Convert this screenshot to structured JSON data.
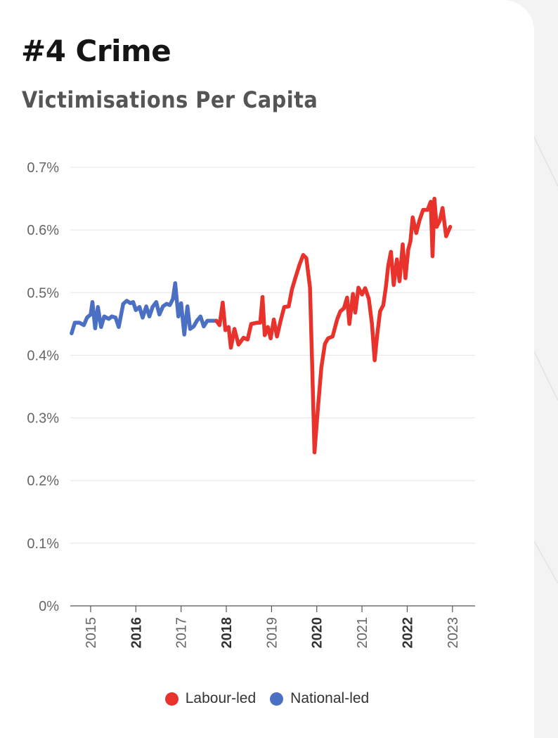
{
  "header": {
    "title": "#4 Crime",
    "subtitle": "Victimisations Per Capita"
  },
  "colors": {
    "labour": "#e8322b",
    "national": "#4a6fc3",
    "grid": "#e4e4ea",
    "axis_text": "#666666"
  },
  "legend": [
    {
      "label": "Labour-led",
      "color": "#e8322b"
    },
    {
      "label": "National-led",
      "color": "#4a6fc3"
    }
  ],
  "chart_data": {
    "type": "line",
    "title": "Victimisations Per Capita",
    "xlabel": "",
    "ylabel": "",
    "xlim": [
      2014.55,
      2023.5
    ],
    "ylim": [
      0,
      0.7
    ],
    "y_ticks": [
      0,
      0.1,
      0.2,
      0.3,
      0.4,
      0.5,
      0.6,
      0.7
    ],
    "y_tick_labels": [
      "0%",
      "0.1%",
      "0.2%",
      "0.3%",
      "0.4%",
      "0.5%",
      "0.6%",
      "0.7%"
    ],
    "x_ticks": [
      {
        "value": 2015,
        "label": "2015",
        "bold": false
      },
      {
        "value": 2016,
        "label": "2016",
        "bold": true
      },
      {
        "value": 2017,
        "label": "2017",
        "bold": false
      },
      {
        "value": 2018,
        "label": "2018",
        "bold": true
      },
      {
        "value": 2019,
        "label": "2019",
        "bold": false
      },
      {
        "value": 2020,
        "label": "2020",
        "bold": true
      },
      {
        "value": 2021,
        "label": "2021",
        "bold": false
      },
      {
        "value": 2022,
        "label": "2022",
        "bold": true
      },
      {
        "value": 2023,
        "label": "2023",
        "bold": false
      }
    ],
    "grid": true,
    "legend_position": "bottom",
    "series": [
      {
        "name": "National-led",
        "color": "#4a6fc3",
        "points": [
          [
            2014.58,
            0.435
          ],
          [
            2014.65,
            0.452
          ],
          [
            2014.75,
            0.452
          ],
          [
            2014.85,
            0.448
          ],
          [
            2014.92,
            0.46
          ],
          [
            2015.0,
            0.465
          ],
          [
            2015.04,
            0.485
          ],
          [
            2015.1,
            0.443
          ],
          [
            2015.16,
            0.477
          ],
          [
            2015.23,
            0.445
          ],
          [
            2015.3,
            0.462
          ],
          [
            2015.4,
            0.458
          ],
          [
            2015.47,
            0.462
          ],
          [
            2015.55,
            0.46
          ],
          [
            2015.62,
            0.445
          ],
          [
            2015.72,
            0.482
          ],
          [
            2015.8,
            0.487
          ],
          [
            2015.88,
            0.483
          ],
          [
            2015.94,
            0.485
          ],
          [
            2016.0,
            0.472
          ],
          [
            2016.08,
            0.477
          ],
          [
            2016.15,
            0.46
          ],
          [
            2016.23,
            0.478
          ],
          [
            2016.3,
            0.462
          ],
          [
            2016.37,
            0.477
          ],
          [
            2016.45,
            0.485
          ],
          [
            2016.52,
            0.465
          ],
          [
            2016.6,
            0.478
          ],
          [
            2016.68,
            0.482
          ],
          [
            2016.75,
            0.48
          ],
          [
            2016.82,
            0.49
          ],
          [
            2016.87,
            0.515
          ],
          [
            2016.94,
            0.462
          ],
          [
            2017.0,
            0.483
          ],
          [
            2017.07,
            0.433
          ],
          [
            2017.14,
            0.478
          ],
          [
            2017.2,
            0.442
          ],
          [
            2017.28,
            0.446
          ],
          [
            2017.35,
            0.455
          ],
          [
            2017.43,
            0.462
          ],
          [
            2017.5,
            0.446
          ],
          [
            2017.58,
            0.455
          ],
          [
            2017.68,
            0.455
          ],
          [
            2017.78,
            0.455
          ]
        ]
      },
      {
        "name": "Labour-led",
        "color": "#e8322b",
        "points": [
          [
            2017.78,
            0.455
          ],
          [
            2017.85,
            0.448
          ],
          [
            2017.92,
            0.484
          ],
          [
            2017.98,
            0.44
          ],
          [
            2018.05,
            0.445
          ],
          [
            2018.1,
            0.412
          ],
          [
            2018.18,
            0.442
          ],
          [
            2018.27,
            0.417
          ],
          [
            2018.38,
            0.428
          ],
          [
            2018.47,
            0.425
          ],
          [
            2018.55,
            0.45
          ],
          [
            2018.68,
            0.452
          ],
          [
            2018.75,
            0.452
          ],
          [
            2018.8,
            0.493
          ],
          [
            2018.85,
            0.432
          ],
          [
            2018.92,
            0.445
          ],
          [
            2018.98,
            0.427
          ],
          [
            2019.05,
            0.457
          ],
          [
            2019.12,
            0.43
          ],
          [
            2019.2,
            0.455
          ],
          [
            2019.28,
            0.477
          ],
          [
            2019.38,
            0.478
          ],
          [
            2019.45,
            0.505
          ],
          [
            2019.52,
            0.522
          ],
          [
            2019.62,
            0.545
          ],
          [
            2019.7,
            0.56
          ],
          [
            2019.77,
            0.555
          ],
          [
            2019.85,
            0.508
          ],
          [
            2019.9,
            0.38
          ],
          [
            2019.95,
            0.245
          ],
          [
            2020.02,
            0.31
          ],
          [
            2020.1,
            0.38
          ],
          [
            2020.18,
            0.418
          ],
          [
            2020.25,
            0.427
          ],
          [
            2020.35,
            0.43
          ],
          [
            2020.45,
            0.457
          ],
          [
            2020.52,
            0.47
          ],
          [
            2020.6,
            0.475
          ],
          [
            2020.67,
            0.492
          ],
          [
            2020.72,
            0.45
          ],
          [
            2020.8,
            0.498
          ],
          [
            2020.85,
            0.468
          ],
          [
            2020.92,
            0.508
          ],
          [
            2021.0,
            0.497
          ],
          [
            2021.07,
            0.507
          ],
          [
            2021.15,
            0.49
          ],
          [
            2021.22,
            0.45
          ],
          [
            2021.28,
            0.392
          ],
          [
            2021.33,
            0.428
          ],
          [
            2021.4,
            0.47
          ],
          [
            2021.47,
            0.48
          ],
          [
            2021.53,
            0.51
          ],
          [
            2021.58,
            0.543
          ],
          [
            2021.64,
            0.565
          ],
          [
            2021.7,
            0.512
          ],
          [
            2021.77,
            0.553
          ],
          [
            2021.83,
            0.518
          ],
          [
            2021.9,
            0.577
          ],
          [
            2021.96,
            0.523
          ],
          [
            2022.02,
            0.568
          ],
          [
            2022.07,
            0.582
          ],
          [
            2022.12,
            0.62
          ],
          [
            2022.2,
            0.595
          ],
          [
            2022.27,
            0.615
          ],
          [
            2022.35,
            0.632
          ],
          [
            2022.45,
            0.632
          ],
          [
            2022.52,
            0.645
          ],
          [
            2022.56,
            0.558
          ],
          [
            2022.6,
            0.65
          ],
          [
            2022.65,
            0.605
          ],
          [
            2022.72,
            0.615
          ],
          [
            2022.78,
            0.635
          ],
          [
            2022.86,
            0.59
          ],
          [
            2022.95,
            0.605
          ]
        ]
      }
    ]
  }
}
